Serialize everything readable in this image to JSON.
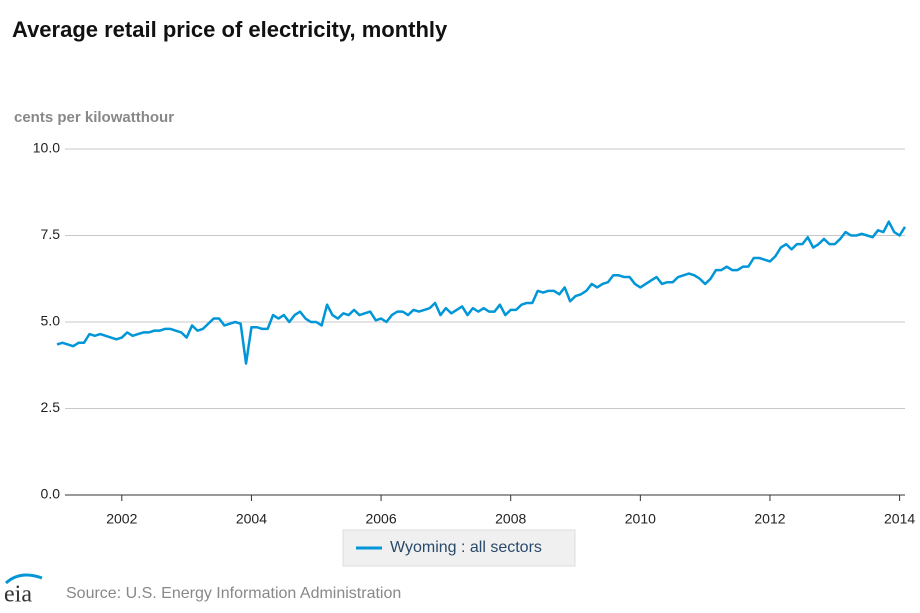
{
  "chart_data": {
    "type": "line",
    "title": "Average retail price of electricity, monthly",
    "y_label": "cents per kilowatthour",
    "source": "Source: U.S. Energy Information Administration",
    "logo": "eia",
    "xlim": [
      "2001-01",
      "2014-02"
    ],
    "xticks": [
      2002,
      2004,
      2006,
      2008,
      2010,
      2012,
      2014
    ],
    "ylim": [
      0,
      10
    ],
    "yticks": [
      {
        "value": 0,
        "label": "0.0"
      },
      2.5,
      {
        "value": 5,
        "label": "5.0"
      },
      7.5,
      {
        "value": 10,
        "label": "10.0"
      }
    ],
    "grid": true,
    "legend": "bottom",
    "x": [
      "2001-01",
      "2001-02",
      "2001-03",
      "2001-04",
      "2001-05",
      "2001-06",
      "2001-07",
      "2001-08",
      "2001-09",
      "2001-10",
      "2001-11",
      "2001-12",
      "2002-01",
      "2002-02",
      "2002-03",
      "2002-04",
      "2002-05",
      "2002-06",
      "2002-07",
      "2002-08",
      "2002-09",
      "2002-10",
      "2002-11",
      "2002-12",
      "2003-01",
      "2003-02",
      "2003-03",
      "2003-04",
      "2003-05",
      "2003-06",
      "2003-07",
      "2003-08",
      "2003-09",
      "2003-10",
      "2003-11",
      "2003-12",
      "2004-01",
      "2004-02",
      "2004-03",
      "2004-04",
      "2004-05",
      "2004-06",
      "2004-07",
      "2004-08",
      "2004-09",
      "2004-10",
      "2004-11",
      "2004-12",
      "2005-01",
      "2005-02",
      "2005-03",
      "2005-04",
      "2005-05",
      "2005-06",
      "2005-07",
      "2005-08",
      "2005-09",
      "2005-10",
      "2005-11",
      "2005-12",
      "2006-01",
      "2006-02",
      "2006-03",
      "2006-04",
      "2006-05",
      "2006-06",
      "2006-07",
      "2006-08",
      "2006-09",
      "2006-10",
      "2006-11",
      "2006-12",
      "2007-01",
      "2007-02",
      "2007-03",
      "2007-04",
      "2007-05",
      "2007-06",
      "2007-07",
      "2007-08",
      "2007-09",
      "2007-10",
      "2007-11",
      "2007-12",
      "2008-01",
      "2008-02",
      "2008-03",
      "2008-04",
      "2008-05",
      "2008-06",
      "2008-07",
      "2008-08",
      "2008-09",
      "2008-10",
      "2008-11",
      "2008-12",
      "2009-01",
      "2009-02",
      "2009-03",
      "2009-04",
      "2009-05",
      "2009-06",
      "2009-07",
      "2009-08",
      "2009-09",
      "2009-10",
      "2009-11",
      "2009-12",
      "2010-01",
      "2010-02",
      "2010-03",
      "2010-04",
      "2010-05",
      "2010-06",
      "2010-07",
      "2010-08",
      "2010-09",
      "2010-10",
      "2010-11",
      "2010-12",
      "2011-01",
      "2011-02",
      "2011-03",
      "2011-04",
      "2011-05",
      "2011-06",
      "2011-07",
      "2011-08",
      "2011-09",
      "2011-10",
      "2011-11",
      "2011-12",
      "2012-01",
      "2012-02",
      "2012-03",
      "2012-04",
      "2012-05",
      "2012-06",
      "2012-07",
      "2012-08",
      "2012-09",
      "2012-10",
      "2012-11",
      "2012-12",
      "2013-01",
      "2013-02",
      "2013-03",
      "2013-04",
      "2013-05",
      "2013-06",
      "2013-07",
      "2013-08",
      "2013-09",
      "2013-10",
      "2013-11",
      "2013-12",
      "2014-01",
      "2014-02"
    ],
    "series": [
      {
        "name": "Wyoming : all sectors",
        "color": "#0096d7",
        "values": [
          4.35,
          4.4,
          4.35,
          4.3,
          4.4,
          4.4,
          4.65,
          4.6,
          4.65,
          4.6,
          4.55,
          4.5,
          4.55,
          4.7,
          4.6,
          4.65,
          4.7,
          4.7,
          4.75,
          4.75,
          4.8,
          4.8,
          4.75,
          4.7,
          4.55,
          4.9,
          4.75,
          4.8,
          4.95,
          5.1,
          5.1,
          4.9,
          4.95,
          5.0,
          4.95,
          3.8,
          4.85,
          4.85,
          4.8,
          4.8,
          5.2,
          5.1,
          5.2,
          5.0,
          5.2,
          5.3,
          5.1,
          5.0,
          5.0,
          4.9,
          5.5,
          5.2,
          5.1,
          5.25,
          5.2,
          5.35,
          5.2,
          5.25,
          5.3,
          5.05,
          5.1,
          5.0,
          5.2,
          5.3,
          5.3,
          5.2,
          5.35,
          5.3,
          5.35,
          5.4,
          5.55,
          5.2,
          5.4,
          5.25,
          5.35,
          5.45,
          5.2,
          5.4,
          5.3,
          5.4,
          5.3,
          5.3,
          5.5,
          5.2,
          5.35,
          5.35,
          5.5,
          5.55,
          5.55,
          5.9,
          5.85,
          5.9,
          5.9,
          5.8,
          6.0,
          5.6,
          5.75,
          5.8,
          5.9,
          6.1,
          6.0,
          6.1,
          6.15,
          6.35,
          6.35,
          6.3,
          6.3,
          6.1,
          6.0,
          6.1,
          6.2,
          6.3,
          6.1,
          6.15,
          6.15,
          6.3,
          6.35,
          6.4,
          6.35,
          6.25,
          6.1,
          6.25,
          6.5,
          6.5,
          6.6,
          6.5,
          6.5,
          6.6,
          6.6,
          6.85,
          6.85,
          6.8,
          6.75,
          6.9,
          7.15,
          7.25,
          7.1,
          7.25,
          7.25,
          7.45,
          7.15,
          7.25,
          7.4,
          7.25,
          7.25,
          7.4,
          7.6,
          7.5,
          7.5,
          7.55,
          7.5,
          7.45,
          7.65,
          7.6,
          7.9,
          7.6,
          7.5,
          7.75
        ]
      }
    ]
  }
}
